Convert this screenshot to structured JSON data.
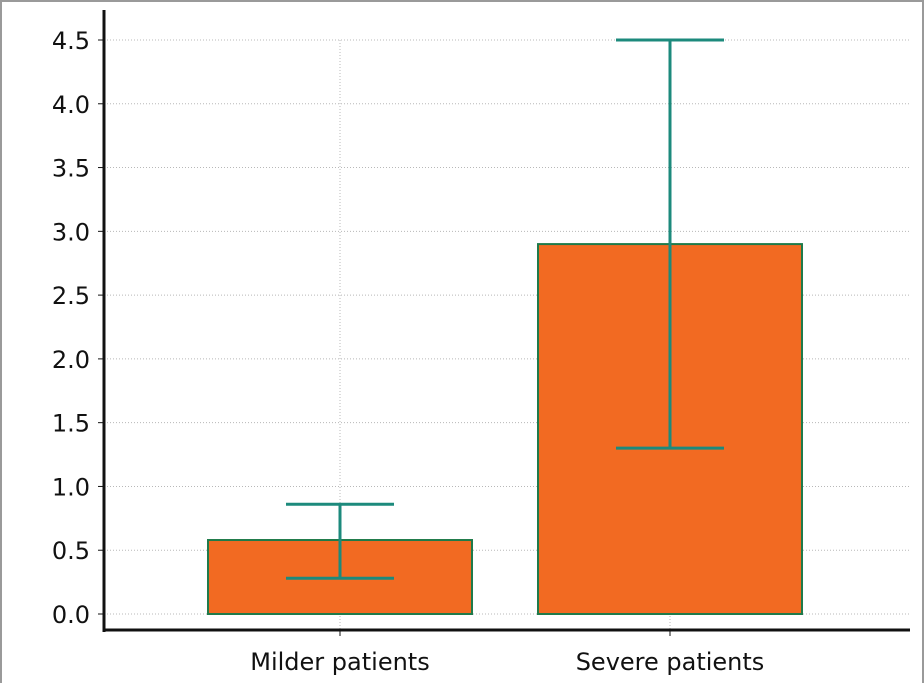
{
  "chart_data": {
    "type": "bar",
    "title": "",
    "xlabel": "",
    "ylabel": "",
    "categories": [
      "Milder patients",
      "Severe patients"
    ],
    "values": [
      0.58,
      2.9
    ],
    "error_bars": [
      {
        "lower": 0.28,
        "upper": 0.86
      },
      {
        "lower": 1.3,
        "upper": 4.5
      }
    ],
    "ylim": [
      0,
      4.5
    ],
    "yticks": [
      "0.0",
      "0.5",
      "1.0",
      "1.5",
      "2.0",
      "2.5",
      "3.0",
      "3.5",
      "4.0",
      "4.5"
    ],
    "grid": true,
    "colors": {
      "bar_fill": "#f26a22",
      "bar_stroke": "#1f7a4a",
      "error_bar": "#1c8a7c",
      "grid": "#b8b8b8",
      "axis": "#111111"
    }
  }
}
